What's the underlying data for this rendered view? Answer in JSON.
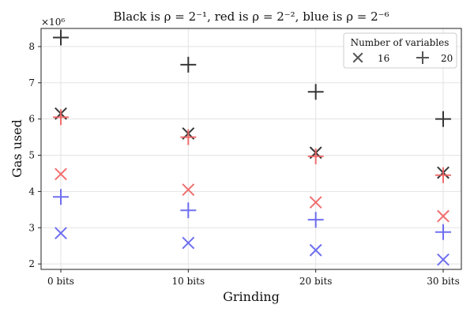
{
  "chart_data": {
    "type": "scatter",
    "title": "Black is ρ = 2⁻¹, red is ρ = 2⁻², blue is ρ = 2⁻⁶",
    "xlabel": "Grinding",
    "ylabel": "Gas used",
    "y_multiplier_label": "×10⁶",
    "categories": [
      "0 bits",
      "10 bits",
      "20 bits",
      "30 bits"
    ],
    "yticks": [
      2,
      3,
      4,
      5,
      6,
      7,
      8
    ],
    "ylim": [
      1.85,
      8.5
    ],
    "grid": true,
    "legend": {
      "title": "Number of variables",
      "position": "top-right",
      "entries": [
        {
          "label": "16",
          "marker": "x"
        },
        {
          "label": "20",
          "marker": "+"
        }
      ]
    },
    "colors": {
      "black": "#222222",
      "red": "#f06060",
      "blue": "#6060f0"
    },
    "series": [
      {
        "color": "black",
        "marker": "+",
        "values": [
          8.25,
          7.5,
          6.75,
          6.0
        ]
      },
      {
        "color": "black",
        "marker": "x",
        "values": [
          6.15,
          5.6,
          5.07,
          4.52
        ]
      },
      {
        "color": "red",
        "marker": "+",
        "values": [
          6.05,
          5.5,
          4.97,
          4.45
        ]
      },
      {
        "color": "red",
        "marker": "x",
        "values": [
          4.48,
          4.05,
          3.7,
          3.32
        ]
      },
      {
        "color": "blue",
        "marker": "+",
        "values": [
          3.85,
          3.48,
          3.22,
          2.88
        ]
      },
      {
        "color": "blue",
        "marker": "x",
        "values": [
          2.85,
          2.58,
          2.38,
          2.12
        ]
      }
    ]
  }
}
